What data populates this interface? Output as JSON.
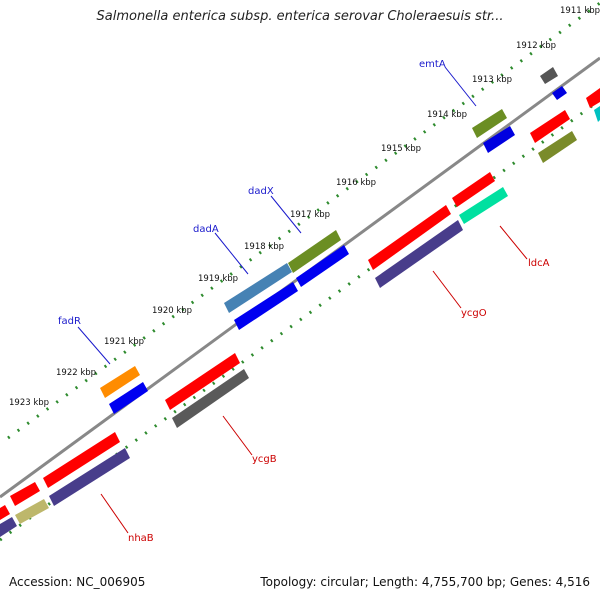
{
  "title": "Salmonella enterica subsp. enterica serovar Choleraesuis str...",
  "footer": {
    "accession": "Accession: NC_006905",
    "summary": "Topology: circular; Length: 4,755,700 bp; Genes: 4,516"
  },
  "ticks": [
    "1911 kbp",
    "1912 kbp",
    "1913 kbp",
    "1914 kbp",
    "1915 kbp",
    "1916 kbp",
    "1917 kbp",
    "1918 kbp",
    "1919 kbp",
    "1920 kbp",
    "1921 kbp",
    "1922 kbp",
    "1923 kbp"
  ],
  "gene_labels": {
    "top": [
      "emtA",
      "dadX",
      "dadA",
      "fadR"
    ],
    "bottom": [
      "ldcA",
      "ycgO",
      "ycgB",
      "nhaB"
    ]
  },
  "colors": {
    "label_top": "#1a1acc",
    "label_bottom": "#cc0000",
    "backbone": "#888888",
    "tick_dots": "#2e8b2e"
  }
}
